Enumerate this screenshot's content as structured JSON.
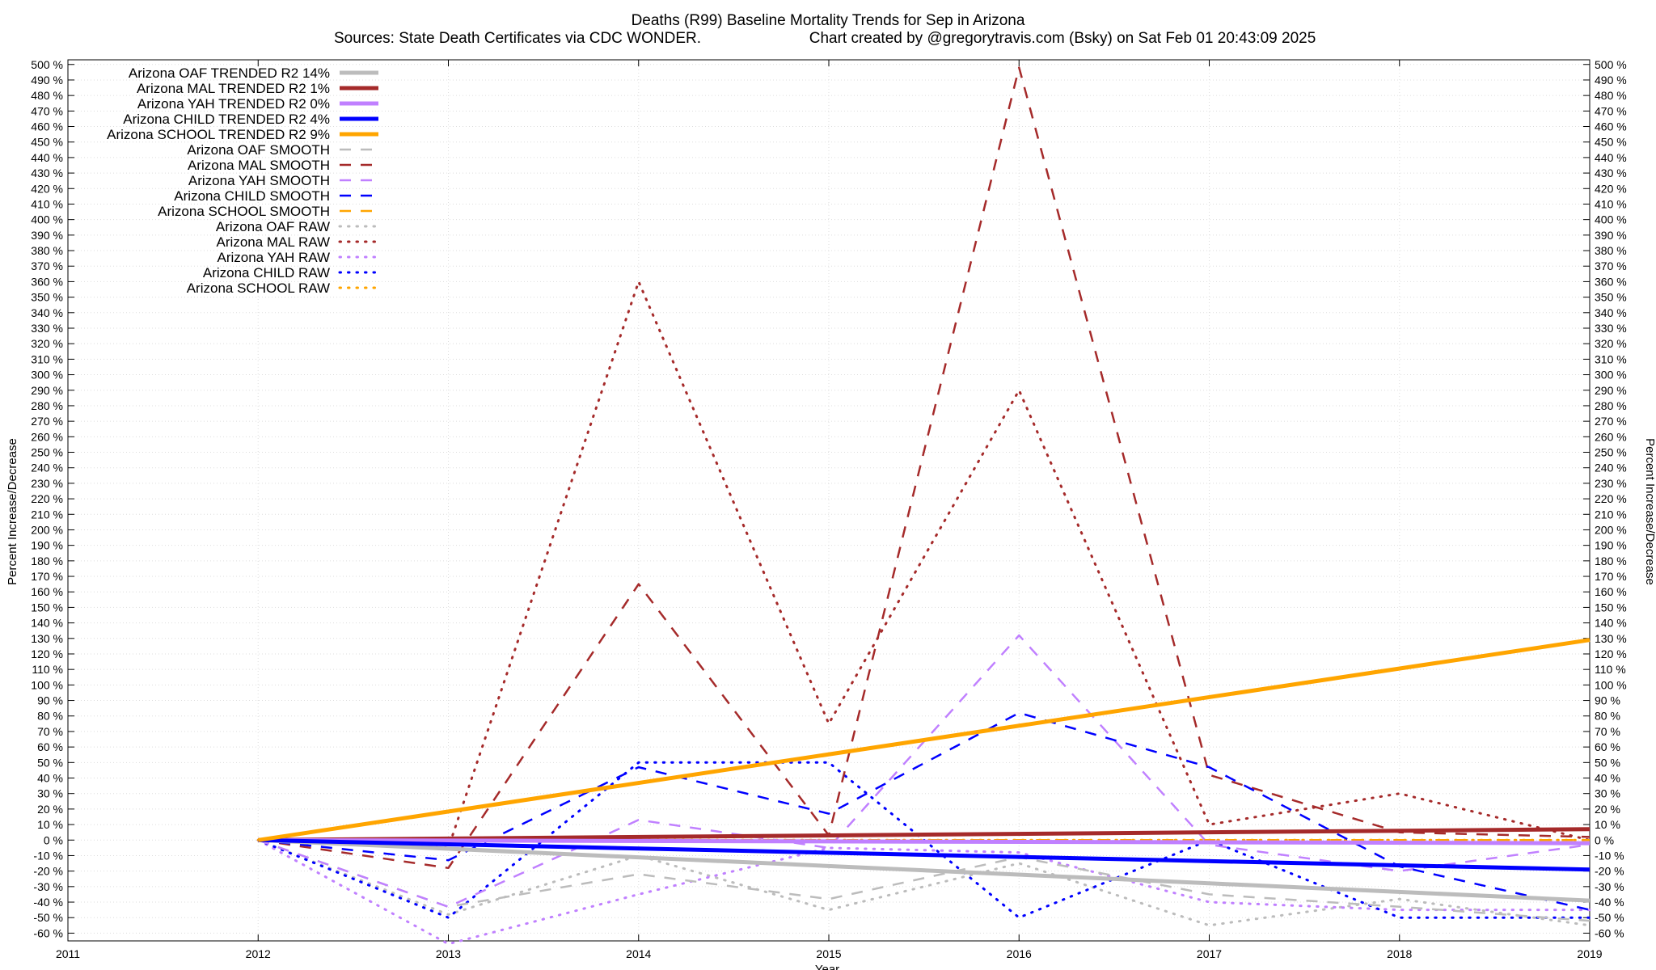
{
  "chart_data": {
    "type": "line",
    "title": "Deaths (R99)  Baseline Mortality Trends for Sep in Arizona",
    "subtitle_left": "Sources: State Death Certificates via CDC WONDER.",
    "subtitle_right": "Chart created by @gregorytravis.com (Bsky) on Sat Feb 01 20:43:09 2025",
    "xlabel": "Year",
    "ylabel_left": "Percent Increase/Decrease",
    "ylabel_right": "Percent Increase/Decrease",
    "xlim": [
      2011,
      2019
    ],
    "ylim": [
      -65,
      503
    ],
    "x_ticks": [
      "2011",
      "2012",
      "2013",
      "2014",
      "2015",
      "2016",
      "2017",
      "2018",
      "2019"
    ],
    "y_ticks": [
      "-60 %",
      "-50 %",
      "-40 %",
      "-30 %",
      "-20 %",
      "-10 %",
      "0 %",
      "10 %",
      "20 %",
      "30 %",
      "40 %",
      "50 %",
      "60 %",
      "70 %",
      "80 %",
      "90 %",
      "100 %",
      "110 %",
      "120 %",
      "130 %",
      "140 %",
      "150 %",
      "160 %",
      "170 %",
      "180 %",
      "190 %",
      "200 %",
      "210 %",
      "220 %",
      "230 %",
      "240 %",
      "250 %",
      "260 %",
      "270 %",
      "280 %",
      "290 %",
      "300 %",
      "310 %",
      "320 %",
      "330 %",
      "340 %",
      "350 %",
      "360 %",
      "370 %",
      "380 %",
      "390 %",
      "400 %",
      "410 %",
      "420 %",
      "430 %",
      "440 %",
      "450 %",
      "460 %",
      "470 %",
      "480 %",
      "490 %",
      "500 %"
    ],
    "grid": true,
    "legend_position": "top-left",
    "series": [
      {
        "name": "Arizona OAF TRENDED R2  14%",
        "color": "#bcbcbc",
        "style": "trend",
        "x": [
          2012,
          2019
        ],
        "y": [
          0,
          -39
        ]
      },
      {
        "name": "Arizona MAL TRENDED R2   1%",
        "color": "#a52a2a",
        "style": "trend",
        "x": [
          2012,
          2019
        ],
        "y": [
          0,
          7
        ]
      },
      {
        "name": "Arizona YAH TRENDED R2   0%",
        "color": "#c080ff",
        "style": "trend",
        "x": [
          2012,
          2019
        ],
        "y": [
          0,
          -2
        ]
      },
      {
        "name": "Arizona CHILD TRENDED R2   4%",
        "color": "#0000ff",
        "style": "trend",
        "x": [
          2012,
          2019
        ],
        "y": [
          0,
          -19
        ]
      },
      {
        "name": "Arizona SCHOOL TRENDED R2   9%",
        "color": "#ffa500",
        "style": "trend",
        "x": [
          2012,
          2019
        ],
        "y": [
          0,
          129
        ]
      },
      {
        "name": "Arizona OAF SMOOTH",
        "color": "#bcbcbc",
        "style": "smooth",
        "x": [
          2012,
          2013,
          2014,
          2015,
          2016,
          2017,
          2018,
          2019
        ],
        "y": [
          0,
          -43,
          -22,
          -38,
          -11,
          -35,
          -43,
          -52
        ]
      },
      {
        "name": "Arizona MAL SMOOTH",
        "color": "#a52a2a",
        "style": "smooth",
        "x": [
          2012,
          2013,
          2014,
          2015,
          2016,
          2017,
          2018,
          2019
        ],
        "y": [
          0,
          -18,
          165,
          3,
          498,
          42,
          5,
          2
        ]
      },
      {
        "name": "Arizona YAH SMOOTH",
        "color": "#c080ff",
        "style": "smooth",
        "x": [
          2012,
          2013,
          2014,
          2015,
          2016,
          2017,
          2018,
          2019
        ],
        "y": [
          0,
          -43,
          13,
          -5,
          132,
          -3,
          -20,
          -3
        ]
      },
      {
        "name": "Arizona CHILD SMOOTH",
        "color": "#0000ff",
        "style": "smooth",
        "x": [
          2012,
          2013,
          2014,
          2015,
          2016,
          2017,
          2018,
          2019
        ],
        "y": [
          0,
          -13,
          47,
          17,
          82,
          47,
          -17,
          -45
        ]
      },
      {
        "name": "Arizona SCHOOL SMOOTH",
        "color": "#ffa500",
        "style": "smooth",
        "x": [
          2012,
          2013,
          2014,
          2015,
          2016,
          2017,
          2018,
          2019
        ],
        "y": [
          0,
          0,
          0,
          0,
          0,
          0,
          0,
          0
        ]
      },
      {
        "name": "Arizona OAF RAW",
        "color": "#bcbcbc",
        "style": "raw",
        "x": [
          2012,
          2013,
          2014,
          2015,
          2016,
          2017,
          2018,
          2019
        ],
        "y": [
          0,
          -48,
          -10,
          -45,
          -15,
          -55,
          -38,
          -55
        ]
      },
      {
        "name": "Arizona MAL RAW",
        "color": "#a52a2a",
        "style": "raw",
        "x": [
          2012,
          2013,
          2014,
          2015,
          2016,
          2017,
          2018,
          2019
        ],
        "y": [
          0,
          -5,
          360,
          75,
          290,
          10,
          30,
          0
        ]
      },
      {
        "name": "Arizona YAH RAW",
        "color": "#c080ff",
        "style": "raw",
        "x": [
          2012,
          2013,
          2014,
          2015,
          2016,
          2017,
          2018,
          2019
        ],
        "y": [
          0,
          -67,
          -35,
          -5,
          -8,
          -40,
          -45,
          -45
        ]
      },
      {
        "name": "Arizona CHILD RAW",
        "color": "#0000ff",
        "style": "raw",
        "x": [
          2012,
          2013,
          2014,
          2015,
          2016,
          2017,
          2018,
          2019
        ],
        "y": [
          0,
          -50,
          50,
          50,
          -50,
          0,
          -50,
          -50
        ]
      },
      {
        "name": "Arizona SCHOOL RAW",
        "color": "#ffa500",
        "style": "raw",
        "x": [
          2012,
          2013,
          2014,
          2015,
          2016,
          2017,
          2018,
          2019
        ],
        "y": [
          0,
          0,
          0,
          0,
          0,
          0,
          0,
          0
        ]
      }
    ]
  }
}
